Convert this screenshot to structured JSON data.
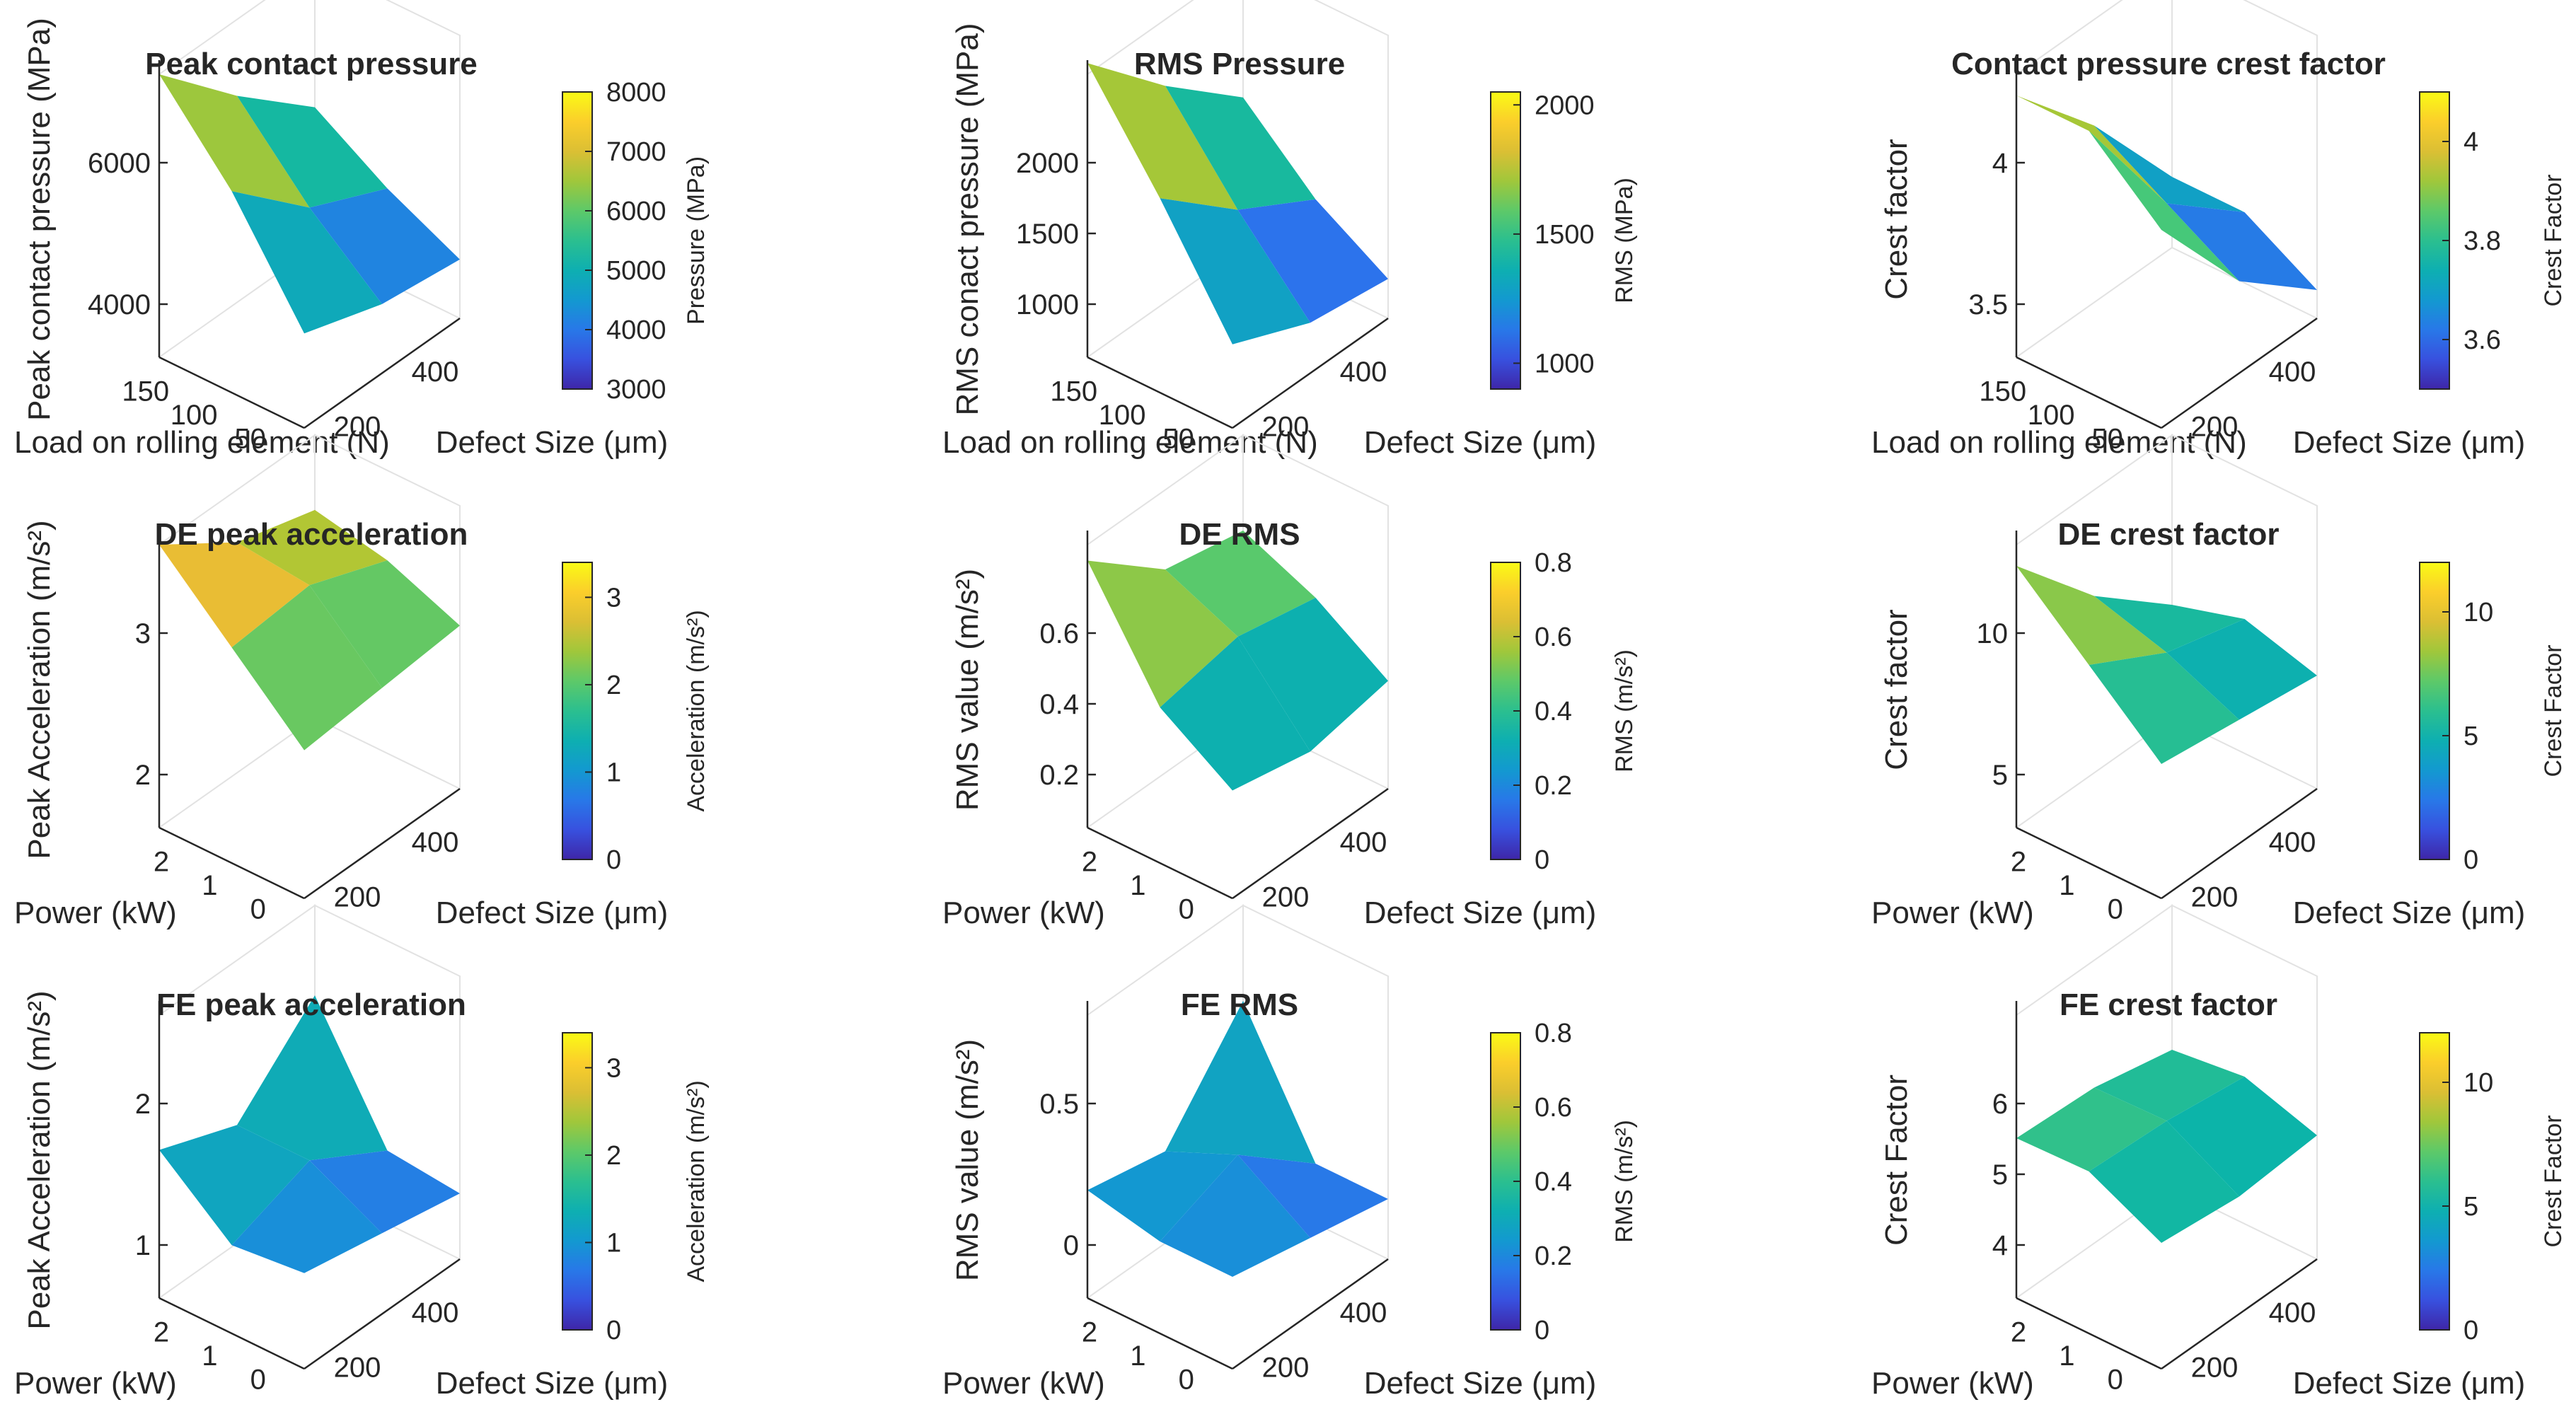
{
  "chart_data": [
    {
      "type": "surface3d",
      "title": "Peak contact pressure",
      "zlabel": "Peak contact pressure (MPa)",
      "xlabel": "Defect Size (μm)",
      "ylabel": "Load on rolling element (N)",
      "xticks": [
        "200",
        "400"
      ],
      "yticks": [
        "150",
        "100",
        "50"
      ],
      "zticks": [
        "6000",
        "4000"
      ],
      "colorbar": {
        "label": "Pressure (MPa)",
        "ticks": [
          "8000",
          "7000",
          "6000",
          "5000",
          "4000",
          "3000"
        ],
        "range": [
          3000,
          8000
        ]
      },
      "surface": {
        "x": [
          100,
          300,
          500
        ],
        "y": [
          160,
          100,
          40
        ],
        "z": [
          [
            8000,
            6500,
            5200
          ],
          [
            6400,
            5000,
            4300
          ],
          [
            4300,
            3800,
            3600
          ]
        ],
        "clim": [
          3000,
          8000
        ]
      },
      "panel_label": ""
    },
    {
      "type": "surface3d",
      "title": "RMS Pressure",
      "zlabel": "RMS conact pressure (MPa)",
      "xlabel": "Defect Size (μm)",
      "ylabel": "Load on rolling element (N)",
      "xticks": [
        "200",
        "400"
      ],
      "yticks": [
        "150",
        "100",
        "50"
      ],
      "zticks": [
        "2000",
        "1500",
        "1000"
      ],
      "colorbar": {
        "label": "RMS (MPa)",
        "ticks": [
          "2000",
          "1500",
          "1000"
        ],
        "range": [
          900,
          2050
        ]
      },
      "surface": {
        "x": [
          100,
          300,
          500
        ],
        "y": [
          160,
          100,
          40
        ],
        "z": [
          [
            2100,
            1750,
            1450
          ],
          [
            1650,
            1350,
            1150
          ],
          [
            1150,
            1000,
            950
          ]
        ],
        "clim": [
          900,
          2050
        ]
      },
      "panel_label": ""
    },
    {
      "type": "surface3d",
      "title": "Contact pressure crest factor",
      "zlabel": "Crest factor",
      "xlabel": "Defect Size (μm)",
      "ylabel": "Load on rolling element (N)",
      "xticks": [
        "200",
        "400"
      ],
      "yticks": [
        "150",
        "100",
        "50"
      ],
      "zticks": [
        "4",
        "3.5"
      ],
      "colorbar": {
        "label": "Crest Factor",
        "ticks": [
          "4",
          "3.8",
          "3.6"
        ],
        "range": [
          3.5,
          4.1
        ]
      },
      "surface": {
        "x": [
          100,
          300,
          500
        ],
        "y": [
          160,
          100,
          40
        ],
        "z": [
          [
            4.05,
            3.85,
            3.6
          ],
          [
            4.05,
            3.75,
            3.6
          ],
          [
            3.9,
            3.65,
            3.5
          ]
        ],
        "clim": [
          3.5,
          4.1
        ]
      },
      "panel_label": "Load on rolling element (N)"
    },
    {
      "type": "surface3d",
      "title": "DE peak acceleration",
      "zlabel": "Peak Acceleration (m/s²)",
      "xlabel": "Defect Size (μm)",
      "ylabel": "Power (kW)",
      "xticks": [
        "200",
        "400"
      ],
      "yticks": [
        "2",
        "1",
        "0"
      ],
      "zticks": [
        "3",
        "2"
      ],
      "colorbar": {
        "label": "Acceleration (m/s²)",
        "ticks": [
          "3",
          "2",
          "1",
          "0"
        ],
        "range": [
          0,
          3.4
        ]
      },
      "surface": {
        "x": [
          100,
          300,
          500
        ],
        "y": [
          2.2,
          1.1,
          0
        ],
        "z": [
          [
            3.4,
            2.7,
            2.4
          ],
          [
            2.5,
            2.6,
            2.2
          ],
          [
            1.6,
            1.7,
            1.8
          ]
        ],
        "clim": [
          0,
          3.4
        ]
      },
      "panel_label": ""
    },
    {
      "type": "surface3d",
      "title": "DE RMS",
      "zlabel": "RMS value (m/s²)",
      "xlabel": "Defect Size (μm)",
      "ylabel": "Power (kW)",
      "xticks": [
        "200",
        "400"
      ],
      "yticks": [
        "2",
        "1",
        "0"
      ],
      "zticks": [
        "0.6",
        "0.4",
        "0.2"
      ],
      "colorbar": {
        "label": "RMS (m/s²)",
        "ticks": [
          "0.8",
          "0.6",
          "0.4",
          "0.2",
          "0"
        ],
        "range": [
          0,
          0.8
        ]
      },
      "surface": {
        "x": [
          100,
          300,
          500
        ],
        "y": [
          2.2,
          1.1,
          0
        ],
        "z": [
          [
            0.75,
            0.55,
            0.5
          ],
          [
            0.4,
            0.45,
            0.4
          ],
          [
            0.25,
            0.2,
            0.25
          ]
        ],
        "clim": [
          0,
          0.8
        ]
      },
      "panel_label": ""
    },
    {
      "type": "surface3d",
      "title": "DE crest factor",
      "zlabel": "Crest factor",
      "xlabel": "Defect Size (μm)",
      "ylabel": "Power (kW)",
      "xticks": [
        "200",
        "400"
      ],
      "yticks": [
        "2",
        "1",
        "0"
      ],
      "zticks": [
        "10",
        "5"
      ],
      "colorbar": {
        "label": "Crest Factor",
        "ticks": [
          "10",
          "5",
          "0"
        ],
        "range": [
          0,
          12
        ]
      },
      "surface": {
        "x": [
          100,
          300,
          500
        ],
        "y": [
          2.2,
          1.1,
          0
        ],
        "z": [
          [
            11,
            7,
            4
          ],
          [
            8,
            6,
            5
          ],
          [
            5,
            4.5,
            4
          ]
        ],
        "clim": [
          0,
          12
        ]
      },
      "panel_label": ""
    },
    {
      "type": "surface3d",
      "title": "FE peak acceleration",
      "zlabel": "Peak Acceleration (m/s²)",
      "xlabel": "Defect Size (μm)",
      "ylabel": "Power (kW)",
      "xticks": [
        "200",
        "400"
      ],
      "yticks": [
        "2",
        "1",
        "0"
      ],
      "zticks": [
        "2",
        "1"
      ],
      "colorbar": {
        "label": "Acceleration (m/s²)",
        "ticks": [
          "3",
          "2",
          "1",
          "0"
        ],
        "range": [
          0,
          3.4
        ]
      },
      "surface": {
        "x": [
          100,
          300,
          500
        ],
        "y": [
          2.2,
          1.1,
          0
        ],
        "z": [
          [
            1.6,
            1.2,
            2.2
          ],
          [
            0.8,
            1.2,
            0.6
          ],
          [
            0.9,
            0.7,
            0.5
          ]
        ],
        "clim": [
          0,
          3.4
        ]
      },
      "panel_label": ""
    },
    {
      "type": "surface3d",
      "title": "FE RMS",
      "zlabel": "RMS value (m/s²)",
      "xlabel": "Defect Size (μm)",
      "ylabel": "Power (kW)",
      "xticks": [
        "200",
        "400"
      ],
      "yticks": [
        "2",
        "1",
        "0"
      ],
      "zticks": [
        "0.5",
        "0"
      ],
      "colorbar": {
        "label": "RMS (m/s²)",
        "ticks": [
          "0.8",
          "0.6",
          "0.4",
          "0.2",
          "0"
        ],
        "range": [
          0,
          0.8
        ]
      },
      "surface": {
        "x": [
          100,
          300,
          500
        ],
        "y": [
          2.2,
          1.1,
          0
        ],
        "z": [
          [
            0.25,
            0.2,
            0.5
          ],
          [
            0.2,
            0.3,
            0.1
          ],
          [
            0.2,
            0.15,
            0.1
          ]
        ],
        "clim": [
          0,
          0.8
        ]
      },
      "panel_label": ""
    },
    {
      "type": "surface3d",
      "title": "FE crest factor",
      "zlabel": "Crest Factor",
      "xlabel": "Defect Size (μm)",
      "ylabel": "Power (kW)",
      "xticks": [
        "200",
        "400"
      ],
      "yticks": [
        "2",
        "1",
        "0"
      ],
      "zticks": [
        "6",
        "5",
        "4"
      ],
      "colorbar": {
        "label": "Crest Factor",
        "ticks": [
          "10",
          "5",
          "0"
        ],
        "range": [
          0,
          12
        ]
      },
      "surface": {
        "x": [
          100,
          300,
          500
        ],
        "y": [
          2.2,
          1.1,
          0
        ],
        "z": [
          [
            6.2,
            6.0,
            5.2
          ],
          [
            6.3,
            6.1,
            5.6
          ],
          [
            4.6,
            4.2,
            4.5
          ]
        ],
        "clim": [
          0,
          12
        ]
      },
      "panel_label": ""
    }
  ]
}
